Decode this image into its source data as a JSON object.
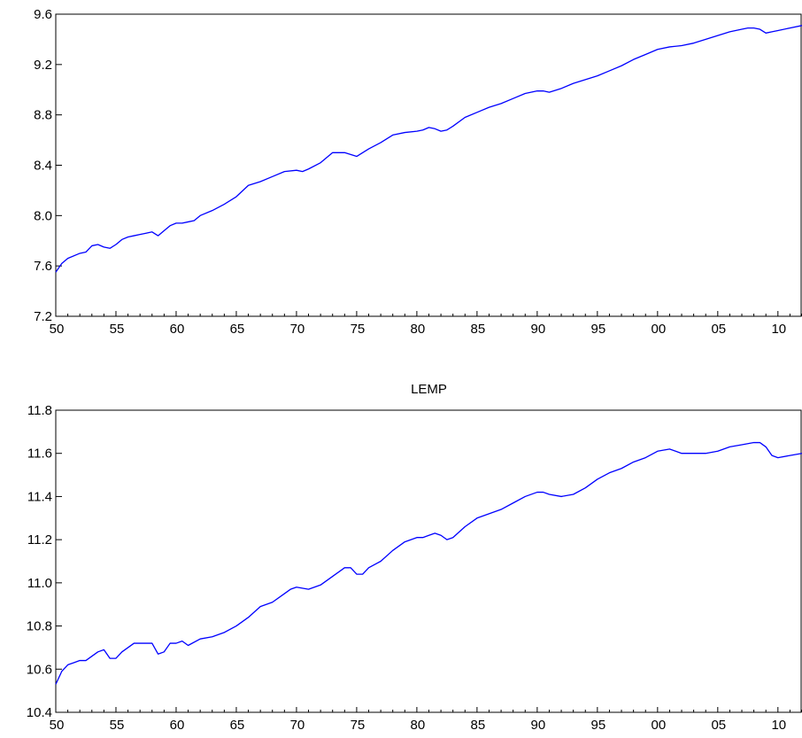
{
  "chart_data": [
    {
      "type": "line",
      "title": "",
      "xlabel": "",
      "ylabel": "",
      "xlim": [
        1950,
        2012
      ],
      "ylim": [
        7.2,
        9.6
      ],
      "yticks": [
        "7.2",
        "7.6",
        "8.0",
        "8.4",
        "8.8",
        "9.2",
        "9.6"
      ],
      "xticks": [
        "50",
        "55",
        "60",
        "65",
        "70",
        "75",
        "80",
        "85",
        "90",
        "95",
        "00",
        "05",
        "10"
      ],
      "grid": false,
      "line_color": "#0000ff",
      "series": [
        {
          "x": [
            1950.0,
            1950.5,
            1951.0,
            1952.0,
            1952.5,
            1953.0,
            1953.5,
            1954.0,
            1954.5,
            1955.0,
            1955.5,
            1956.0,
            1956.5,
            1957.0,
            1957.5,
            1958.0,
            1958.5,
            1959.0,
            1959.5,
            1960.0,
            1960.5,
            1961.0,
            1961.5,
            1962.0,
            1963.0,
            1964.0,
            1965.0,
            1966.0,
            1967.0,
            1968.0,
            1969.0,
            1970.0,
            1970.5,
            1971.0,
            1972.0,
            1973.0,
            1974.0,
            1975.0,
            1975.5,
            1976.0,
            1977.0,
            1977.5,
            1978.0,
            1979.0,
            1980.0,
            1980.5,
            1981.0,
            1981.5,
            1982.0,
            1982.5,
            1983.0,
            1984.0,
            1985.0,
            1986.0,
            1987.0,
            1988.0,
            1989.0,
            1990.0,
            1990.5,
            1991.0,
            1992.0,
            1993.0,
            1994.0,
            1995.0,
            1996.0,
            1997.0,
            1998.0,
            1999.0,
            2000.0,
            2001.0,
            2002.0,
            2003.0,
            2004.0,
            2005.0,
            2006.0,
            2007.0,
            2007.5,
            2008.0,
            2008.5,
            2009.0,
            2009.5,
            2010.0,
            2011.0,
            2012.0
          ],
          "y": [
            7.55,
            7.62,
            7.66,
            7.7,
            7.71,
            7.76,
            7.77,
            7.75,
            7.74,
            7.77,
            7.81,
            7.83,
            7.84,
            7.85,
            7.86,
            7.87,
            7.84,
            7.88,
            7.92,
            7.94,
            7.94,
            7.95,
            7.96,
            8.0,
            8.04,
            8.09,
            8.15,
            8.24,
            8.27,
            8.31,
            8.35,
            8.36,
            8.35,
            8.37,
            8.42,
            8.5,
            8.5,
            8.47,
            8.5,
            8.53,
            8.58,
            8.61,
            8.64,
            8.66,
            8.67,
            8.68,
            8.7,
            8.69,
            8.67,
            8.68,
            8.71,
            8.78,
            8.82,
            8.86,
            8.89,
            8.93,
            8.97,
            8.99,
            8.99,
            8.98,
            9.01,
            9.05,
            9.08,
            9.11,
            9.15,
            9.19,
            9.24,
            9.28,
            9.32,
            9.34,
            9.35,
            9.37,
            9.4,
            9.43,
            9.46,
            9.48,
            9.49,
            9.49,
            9.48,
            9.45,
            9.46,
            9.47,
            9.49,
            9.51
          ]
        }
      ]
    },
    {
      "type": "line",
      "title": "LEMP",
      "xlabel": "",
      "ylabel": "",
      "xlim": [
        1950,
        2012
      ],
      "ylim": [
        10.4,
        11.8
      ],
      "yticks": [
        "10.4",
        "10.6",
        "10.8",
        "11.0",
        "11.2",
        "11.4",
        "11.6",
        "11.8"
      ],
      "xticks": [
        "50",
        "55",
        "60",
        "65",
        "70",
        "75",
        "80",
        "85",
        "90",
        "95",
        "00",
        "05",
        "10"
      ],
      "grid": false,
      "line_color": "#0000ff",
      "series": [
        {
          "x": [
            1950.0,
            1950.5,
            1951.0,
            1951.5,
            1952.0,
            1952.5,
            1953.0,
            1953.5,
            1954.0,
            1954.5,
            1955.0,
            1955.5,
            1956.0,
            1956.5,
            1957.0,
            1957.5,
            1958.0,
            1958.5,
            1959.0,
            1959.5,
            1960.0,
            1960.5,
            1961.0,
            1962.0,
            1963.0,
            1964.0,
            1965.0,
            1966.0,
            1967.0,
            1968.0,
            1969.0,
            1969.5,
            1970.0,
            1971.0,
            1972.0,
            1973.0,
            1974.0,
            1974.5,
            1975.0,
            1975.5,
            1976.0,
            1977.0,
            1978.0,
            1979.0,
            1980.0,
            1980.5,
            1981.0,
            1981.5,
            1982.0,
            1982.5,
            1983.0,
            1984.0,
            1985.0,
            1986.0,
            1987.0,
            1988.0,
            1989.0,
            1990.0,
            1990.5,
            1991.0,
            1992.0,
            1993.0,
            1994.0,
            1995.0,
            1996.0,
            1997.0,
            1998.0,
            1999.0,
            2000.0,
            2001.0,
            2002.0,
            2003.0,
            2004.0,
            2005.0,
            2006.0,
            2007.0,
            2008.0,
            2008.5,
            2009.0,
            2009.5,
            2010.0,
            2011.0,
            2012.0
          ],
          "y": [
            10.53,
            10.59,
            10.62,
            10.63,
            10.64,
            10.64,
            10.66,
            10.68,
            10.69,
            10.65,
            10.65,
            10.68,
            10.7,
            10.72,
            10.72,
            10.72,
            10.72,
            10.67,
            10.68,
            10.72,
            10.72,
            10.73,
            10.71,
            10.74,
            10.75,
            10.77,
            10.8,
            10.84,
            10.89,
            10.91,
            10.95,
            10.97,
            10.98,
            10.97,
            10.99,
            11.03,
            11.07,
            11.07,
            11.04,
            11.04,
            11.07,
            11.1,
            11.15,
            11.19,
            11.21,
            11.21,
            11.22,
            11.23,
            11.22,
            11.2,
            11.21,
            11.26,
            11.3,
            11.32,
            11.34,
            11.37,
            11.4,
            11.42,
            11.42,
            11.41,
            11.4,
            11.41,
            11.44,
            11.48,
            11.51,
            11.53,
            11.56,
            11.58,
            11.61,
            11.62,
            11.6,
            11.6,
            11.6,
            11.61,
            11.63,
            11.64,
            11.65,
            11.65,
            11.63,
            11.59,
            11.58,
            11.59,
            11.6
          ]
        }
      ]
    }
  ]
}
